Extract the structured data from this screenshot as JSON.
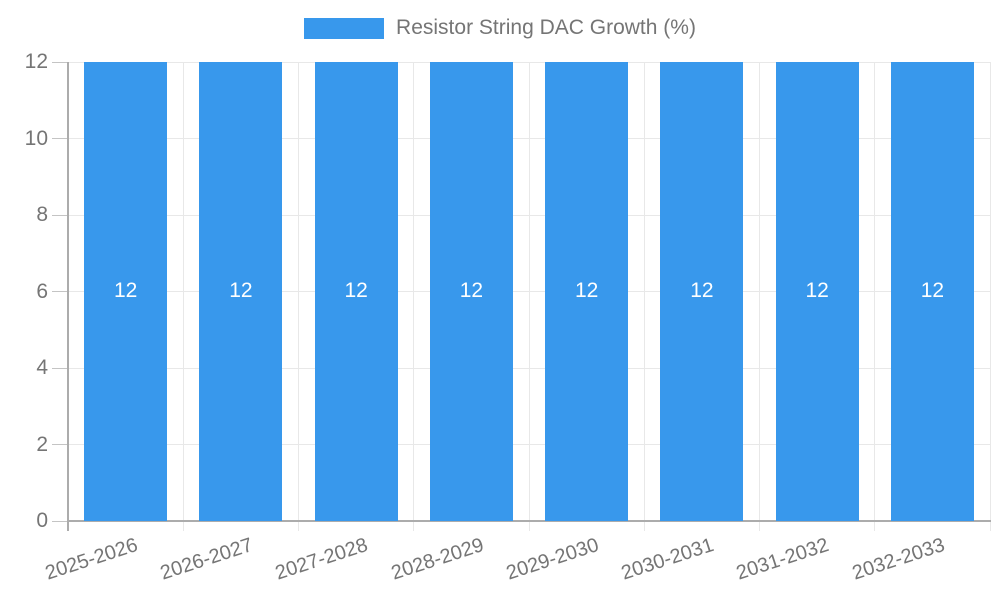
{
  "legend": {
    "label": "Resistor String DAC Growth (%)",
    "swatch_color": "#3898EC"
  },
  "chart_data": {
    "type": "bar",
    "title": "Resistor String DAC Growth (%)",
    "categories": [
      "2025-2026",
      "2026-2027",
      "2027-2028",
      "2028-2029",
      "2029-2030",
      "2030-2031",
      "2031-2032",
      "2032-2033"
    ],
    "values": [
      12,
      12,
      12,
      12,
      12,
      12,
      12,
      12
    ],
    "bar_labels": [
      "12",
      "12",
      "12",
      "12",
      "12",
      "12",
      "12",
      "12"
    ],
    "xlabel": "",
    "ylabel": "",
    "ylim": [
      0,
      12
    ],
    "yticks": [
      0,
      2,
      4,
      6,
      8,
      10,
      12
    ],
    "grid": true,
    "legend_position": "top",
    "bar_color": "#3898EC",
    "bar_label_color": "#ffffff",
    "axis_text_color": "#757575",
    "gridline_color": "#E8E8E8",
    "axis_line_color": "#ACACAC"
  }
}
